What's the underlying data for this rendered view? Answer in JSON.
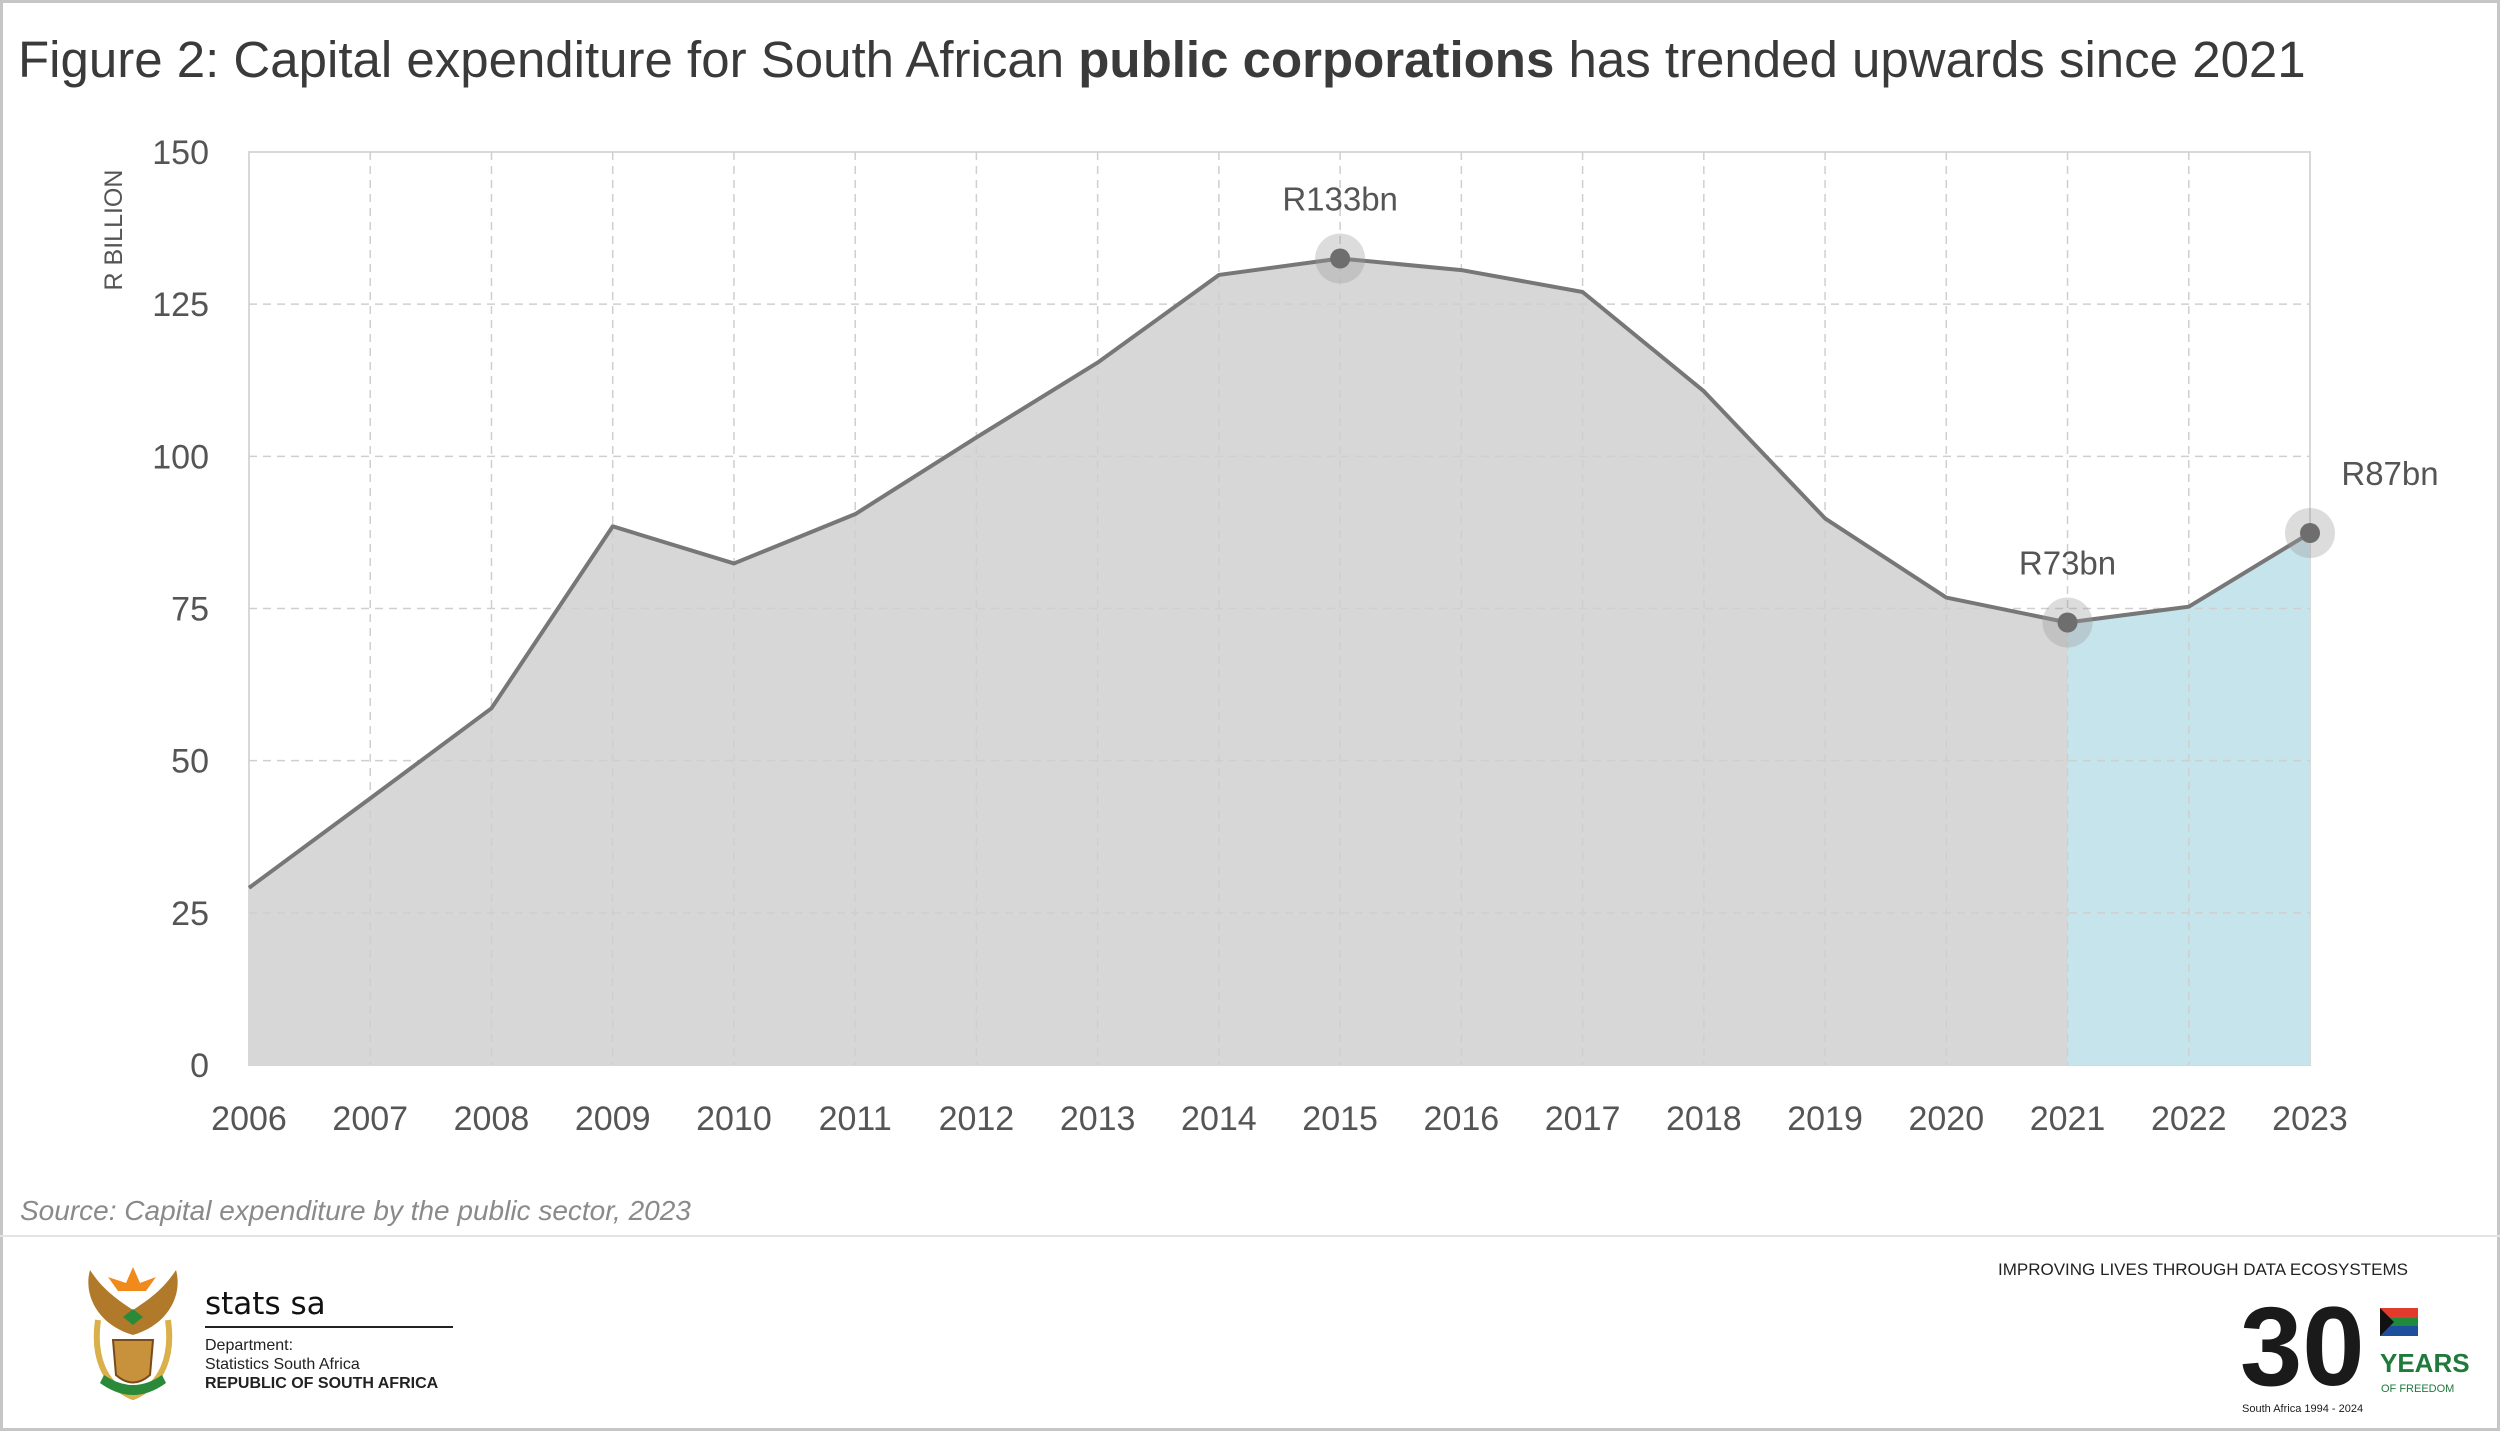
{
  "title": {
    "prefix": "Figure 2: Capital expenditure for South African ",
    "bold": "public corporations",
    "suffix": " has trended upwards since 2021"
  },
  "source": "Source: Capital expenditure by the public sector, 2023",
  "footer": {
    "brand": "stats sa",
    "dept_line1": "Department:",
    "dept_line2": "Statistics South Africa",
    "dept_line3": "REPUBLIC OF SOUTH AFRICA",
    "tagline": "IMPROVING LIVES THROUGH DATA ECOSYSTEMS",
    "logo_30_text": "YEARS",
    "logo_30_sub": "OF FREEDOM",
    "logo_30_ring": "South Africa 1994 - 2024",
    "logo_30_number": "30"
  },
  "chart_data": {
    "type": "area",
    "title": "Figure 2: Capital expenditure for South African public corporations has trended upwards since 2021",
    "ylabel": "R BILLION",
    "xlabel": "",
    "x": [
      "2006",
      "2007",
      "2008",
      "2009",
      "2010",
      "2011",
      "2012",
      "2013",
      "2014",
      "2015",
      "2016",
      "2017",
      "2018",
      "2019",
      "2020",
      "2021",
      "2022",
      "2023"
    ],
    "values": [
      29.1,
      43.8,
      58.6,
      88.5,
      82.4,
      90.5,
      103.1,
      115.4,
      129.8,
      132.5,
      130.6,
      127.0,
      110.7,
      89.8,
      76.8,
      72.7,
      75.3,
      87.4
    ],
    "ylim": [
      0,
      150
    ],
    "yticks": [
      0,
      25,
      50,
      75,
      100,
      125,
      150
    ],
    "grid": true,
    "highlight_from": "2021",
    "colors": {
      "area": "#d7d7d7",
      "highlight_area": "#c5e4ec",
      "line": "#777777",
      "marker": "#6e6e6e"
    },
    "annotations": [
      {
        "x": "2015",
        "label": "R133bn"
      },
      {
        "x": "2021",
        "label": "R73bn"
      },
      {
        "x": "2023",
        "label": "R87bn"
      }
    ]
  }
}
